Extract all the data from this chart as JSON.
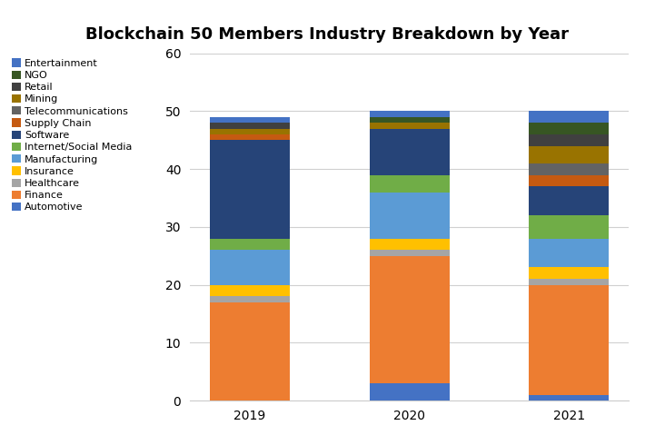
{
  "title": "Blockchain 50 Members Industry Breakdown by Year",
  "years": [
    "2019",
    "2020",
    "2021"
  ],
  "categories": [
    "Automotive",
    "Finance",
    "Healthcare",
    "Insurance",
    "Manufacturing",
    "Internet/Social Media",
    "Software",
    "Supply Chain",
    "Telecommunications",
    "Mining",
    "Retail",
    "NGO",
    "Entertainment"
  ],
  "colors": [
    "#4472C4",
    "#ED7D31",
    "#A5A5A5",
    "#FFC000",
    "#5B9BD5",
    "#70AD47",
    "#264478",
    "#C55A11",
    "#636363",
    "#997300",
    "#404040",
    "#375623",
    "#4472C4"
  ],
  "values": {
    "2019": [
      0,
      17,
      1,
      2,
      6,
      2,
      17,
      1,
      0,
      1,
      1,
      0,
      1
    ],
    "2020": [
      3,
      22,
      1,
      2,
      8,
      3,
      8,
      0,
      0,
      1,
      0,
      1,
      1
    ],
    "2021": [
      1,
      19,
      1,
      2,
      5,
      4,
      5,
      2,
      2,
      3,
      2,
      2,
      2
    ]
  },
  "ylim": [
    0,
    60
  ],
  "yticks": [
    0,
    10,
    20,
    30,
    40,
    50,
    60
  ],
  "background_color": "#ffffff",
  "grid_color": "#d0d0d0",
  "bar_width": 0.5,
  "title_fontsize": 13,
  "tick_fontsize": 10,
  "legend_fontsize": 8
}
